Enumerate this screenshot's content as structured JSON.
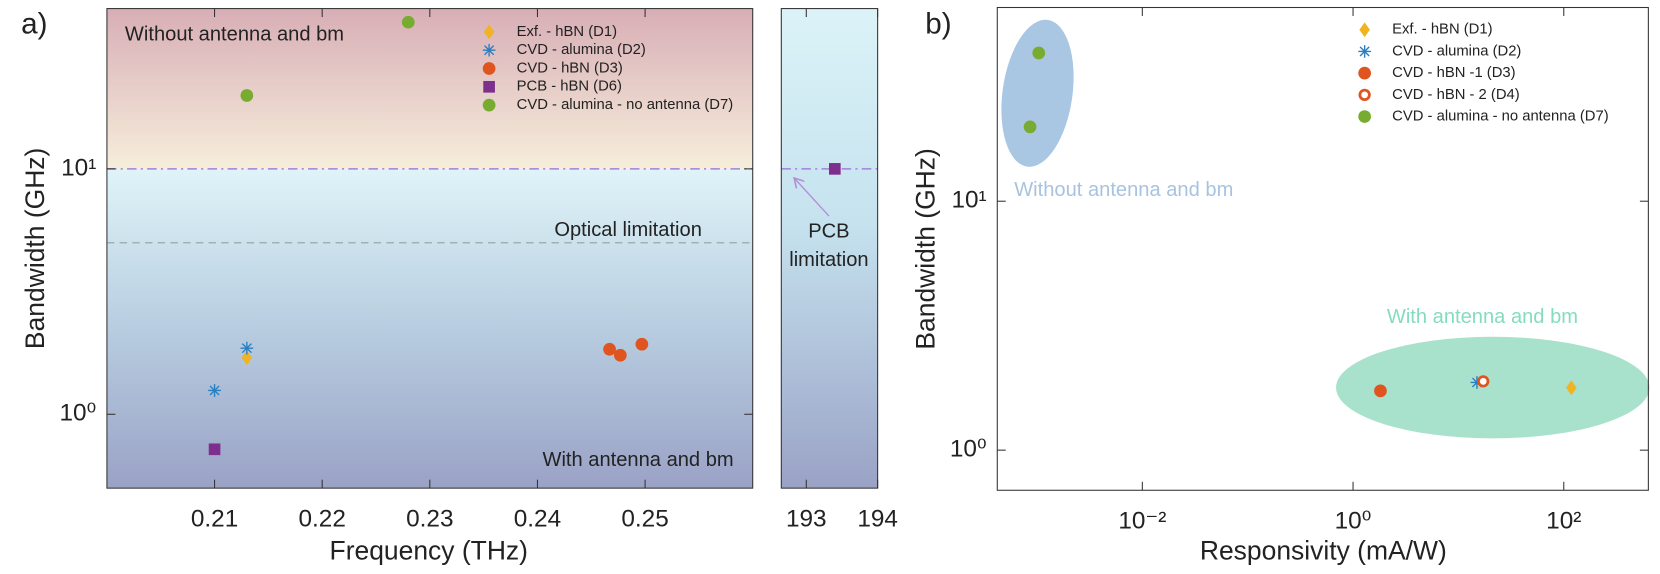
{
  "chart_data": [
    {
      "panel_label": "a)",
      "type": "scatter",
      "xlabel": "Frequency (THz)",
      "ylabel": "Bandwidth (GHz)",
      "xlim": [
        0.2,
        0.26
      ],
      "xticks": [
        0.21,
        0.22,
        0.23,
        0.24,
        0.25
      ],
      "ylim": [
        0.5,
        45
      ],
      "yscale": "log",
      "yticks": [
        {
          "value": 1,
          "label": "10⁰"
        },
        {
          "value": 10,
          "label": "10¹"
        }
      ],
      "hlines": [
        {
          "value": 10,
          "color": "#a57fdc",
          "style": "dashdot"
        },
        {
          "value": 5,
          "color": "#9fb0ba",
          "style": "dashed"
        }
      ],
      "annotations": [
        "Without antenna and bm",
        "Optical limitation",
        "With antenna and bm"
      ],
      "series": [
        {
          "name": "Exf. - hBN (D1)",
          "color": "#f0b323",
          "marker": "diamond",
          "x": [
            0.213
          ],
          "values": [
            1.7
          ]
        },
        {
          "name": "CVD - alumina (D2)",
          "color": "#2a7fc1",
          "marker": "asterisk",
          "x": [
            0.21,
            0.213
          ],
          "values": [
            1.25,
            1.86
          ]
        },
        {
          "name": "CVD - hBN (D3)",
          "color": "#e0541f",
          "marker": "circle",
          "x": [
            0.2467,
            0.2477,
            0.2497
          ],
          "values": [
            1.84,
            1.74,
            1.93
          ]
        },
        {
          "name": "PCB - hBN (D6)",
          "color": "#7e2f8e",
          "marker": "square",
          "x": [
            0.21
          ],
          "values": [
            0.72
          ]
        },
        {
          "name": "CVD - alumina - no antenna (D7)",
          "color": "#77ac30",
          "marker": "circle",
          "x": [
            0.213,
            0.228
          ],
          "values": [
            19.9,
            39.6
          ]
        }
      ]
    },
    {
      "type": "scatter",
      "xlim": [
        192.65,
        194
      ],
      "xticks": [
        193,
        194
      ],
      "ylim": [
        0.5,
        45
      ],
      "yscale": "log",
      "hlines": [
        {
          "value": 10,
          "color": "#a57fdc",
          "style": "dashdot"
        }
      ],
      "annotations": [
        "PCB",
        "limitation"
      ],
      "series": [
        {
          "color": "#7e2f8e",
          "marker": "square",
          "x": [
            193.4
          ],
          "values": [
            10
          ]
        }
      ]
    },
    {
      "panel_label": "b)",
      "type": "scatter",
      "xlabel": "Responsivity (mA/W)",
      "ylabel": "Bandwidth (GHz)",
      "xscale": "log",
      "xlim": [
        0.00042,
        635
      ],
      "xticks": [
        {
          "value": 0.01,
          "label": "10⁻²"
        },
        {
          "value": 1,
          "label": "10⁰"
        },
        {
          "value": 100,
          "label": "10²"
        }
      ],
      "yscale": "log",
      "ylim": [
        0.69,
        60
      ],
      "yticks": [
        {
          "value": 1,
          "label": "10⁰"
        },
        {
          "value": 10,
          "label": "10¹"
        }
      ],
      "annotations": [
        "Without antenna and bm",
        "With antenna and bm"
      ],
      "series": [
        {
          "name": "Exf. - hBN (D1)",
          "color": "#f0b323",
          "marker": "diamond",
          "x": [
            118
          ],
          "values": [
            1.78
          ]
        },
        {
          "name": "CVD - alumina (D2)",
          "color": "#2a7fc1",
          "marker": "asterisk",
          "x": [
            15
          ],
          "values": [
            1.87
          ]
        },
        {
          "name": "CVD - hBN -1 (D3)",
          "color": "#e0541f",
          "marker": "circle",
          "x": [
            1.82
          ],
          "values": [
            1.73
          ]
        },
        {
          "name": "CVD - hBN - 2 (D4)",
          "color": "#e0541f",
          "marker": "ring",
          "x": [
            17.2
          ],
          "values": [
            1.89
          ]
        },
        {
          "name": "CVD - alumina - no antenna (D7)",
          "color": "#77ac30",
          "marker": "circle",
          "x": [
            0.00104,
            0.00086
          ],
          "values": [
            39.4,
            19.9
          ]
        }
      ]
    }
  ]
}
